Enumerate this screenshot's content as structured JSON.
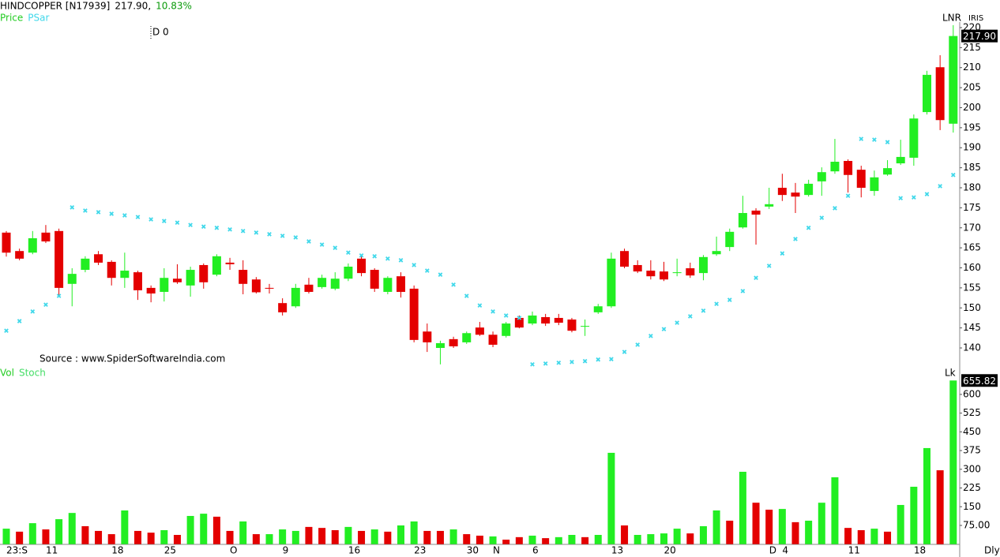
{
  "chart_data": [
    {
      "type": "candlestick",
      "title": "HINDCOPPER [N17939]",
      "header_price": "217.90,",
      "header_change": "10.83%",
      "header_change_color": "#0a9a0a",
      "annotation": "D 0",
      "source": "Source : www.SpiderSoftwareIndia.com",
      "axis_tags": [
        "LNR",
        "IRIS"
      ],
      "up_color": "#22ee22",
      "down_color": "#e40000",
      "ylim": [
        135,
        221
      ],
      "yticks": [
        140,
        145,
        150,
        155,
        160,
        165,
        170,
        175,
        180,
        185,
        190,
        195,
        200,
        205,
        210,
        215,
        220
      ],
      "last_price": {
        "value": 217.9,
        "label": "217.90"
      },
      "series": [
        {
          "name": "Price",
          "color": "#22cc22",
          "open": [
            168.8,
            164.2,
            163.8,
            168.8,
            169.2,
            156,
            159.5,
            163.4,
            161.5,
            157.5,
            158.9,
            155,
            154,
            157.3,
            155.6,
            160.7,
            158.3,
            161.3,
            159.5,
            157.1,
            155,
            151.2,
            150.4,
            155.8,
            155.2,
            154.8,
            157.3,
            162.3,
            159.5,
            154,
            157.9,
            154.8,
            144.1,
            140,
            142.2,
            141.4,
            145.1,
            143.3,
            143,
            147.5,
            146.1,
            147.7,
            147.5,
            147.1,
            145.3,
            148.9,
            150.4,
            164.2,
            160.7,
            159.3,
            159.1,
            158.7,
            159.9,
            158.7,
            163.4,
            165.2,
            170.1,
            174.3,
            175.3,
            180,
            178.8,
            178.2,
            181.6,
            184.1,
            186.7,
            184.5,
            179.2,
            183.3,
            186.1,
            187.5,
            198.9,
            210.1,
            196
          ],
          "high": [
            169.2,
            164.8,
            169.2,
            170.7,
            169.8,
            159.9,
            162.9,
            164.2,
            161.9,
            163.8,
            159.3,
            155.6,
            159.9,
            160.9,
            160.3,
            161.1,
            163.4,
            162.5,
            161.9,
            157.7,
            156,
            152.4,
            156,
            157.5,
            158.3,
            158.9,
            161.1,
            162.9,
            159.9,
            157.9,
            158.9,
            155.6,
            146.1,
            141.8,
            142.8,
            144.1,
            146.5,
            144.1,
            146.5,
            148.1,
            149.1,
            148.5,
            148.5,
            147.5,
            147.1,
            151,
            163.8,
            164.8,
            161.9,
            161.9,
            161.5,
            162.3,
            161.3,
            163.2,
            167.8,
            169.8,
            178,
            174.9,
            180,
            183.5,
            181.2,
            182,
            185.1,
            192.2,
            187.1,
            185.5,
            184.3,
            186.9,
            192,
            198.3,
            209.2,
            213.1,
            220.6
          ],
          "low": [
            162.8,
            161.9,
            163.4,
            166.2,
            153,
            150.4,
            158.9,
            160.7,
            155.6,
            155,
            152,
            151.4,
            151.6,
            156,
            152.8,
            154.8,
            157.9,
            159.5,
            153.4,
            153.6,
            153.6,
            148.1,
            150,
            153.6,
            154.8,
            154.4,
            156.7,
            157.9,
            154,
            153.4,
            152.6,
            141.4,
            139,
            135.9,
            140,
            141,
            143,
            140.2,
            142.6,
            144.9,
            145.7,
            145.5,
            145.7,
            143.9,
            143,
            148.5,
            150,
            159.9,
            158.7,
            157.1,
            156.7,
            157.9,
            157.5,
            156.9,
            163,
            164.2,
            169.8,
            165.8,
            174.7,
            176.7,
            173.7,
            177.8,
            178,
            183.5,
            178.8,
            177.6,
            178,
            183,
            185.7,
            185.5,
            198.3,
            194.4,
            193.8
          ],
          "close": [
            163.8,
            162.3,
            167.4,
            166.6,
            155,
            158.5,
            162.3,
            161.3,
            157.5,
            159.3,
            154.4,
            153.6,
            157.5,
            156.4,
            159.5,
            156.4,
            162.9,
            160.9,
            156,
            153.9,
            154.8,
            148.9,
            155,
            154,
            157.5,
            157.3,
            160.3,
            158.7,
            154.8,
            157.5,
            154,
            142,
            141.4,
            141.2,
            140.4,
            143.7,
            143.3,
            140.8,
            146.1,
            145.1,
            148.1,
            146.1,
            146.3,
            144.3,
            145.5,
            150.4,
            162.3,
            160.3,
            159.1,
            157.9,
            157.1,
            158.9,
            158.1,
            162.7,
            164.2,
            169,
            173.7,
            173.3,
            175.9,
            178.2,
            177.8,
            181,
            183.9,
            186.5,
            183.2,
            180,
            182.6,
            184.9,
            187.7,
            197.3,
            208.2,
            196.9,
            217.9
          ]
        },
        {
          "name": "PSar",
          "color": "#40d8ea",
          "values": [
            144.3,
            146.7,
            149.1,
            150.8,
            153,
            175.1,
            174.3,
            173.9,
            173.5,
            173.1,
            172.7,
            172.1,
            171.7,
            171.3,
            170.7,
            170.3,
            170,
            169.6,
            169.2,
            168.8,
            168.4,
            168,
            167.6,
            166.6,
            165.8,
            165,
            163.8,
            163.1,
            162.9,
            162.3,
            161.9,
            160.7,
            159.3,
            158.3,
            155.8,
            153,
            150.6,
            149.1,
            148.1,
            147.5,
            135.9,
            136.1,
            136.3,
            136.5,
            136.7,
            137.1,
            137.2,
            139,
            140.8,
            143,
            144.7,
            146.3,
            147.9,
            149.3,
            151,
            152,
            154.2,
            157.5,
            160.5,
            163.6,
            167.2,
            170,
            172.5,
            174.9,
            178,
            192.2,
            192,
            191.4,
            177.4,
            177.6,
            178.4,
            180.4,
            183.2
          ]
        }
      ]
    },
    {
      "type": "bar",
      "unit_label": "Lk",
      "x_label": "Dly",
      "indicator": "Stoch",
      "indicator_color": "#44dd66",
      "categories": [
        "23:S",
        null,
        null,
        "11",
        null,
        null,
        null,
        null,
        "18",
        null,
        null,
        null,
        "25",
        null,
        null,
        null,
        null,
        "O",
        null,
        null,
        null,
        "9",
        null,
        null,
        null,
        null,
        "16",
        null,
        null,
        null,
        null,
        "23",
        null,
        null,
        null,
        "30",
        null,
        "N",
        null,
        null,
        "6",
        null,
        null,
        null,
        null,
        null,
        "13",
        null,
        null,
        null,
        "20",
        null,
        null,
        null,
        null,
        null,
        null,
        null,
        "D",
        "4",
        null,
        null,
        null,
        null,
        "11",
        null,
        null,
        null,
        null,
        "18",
        null,
        null,
        null
      ],
      "ylim": [
        0,
        663
      ],
      "yticks": [
        {
          "value": 75,
          "label": "75.00"
        },
        150,
        225,
        300,
        375,
        450,
        525,
        600
      ],
      "series": [
        {
          "name": "Vol",
          "color": "#22cc22",
          "values": [
            62,
            50,
            84,
            59,
            100,
            125,
            72,
            53,
            40,
            135,
            53,
            46,
            56,
            37,
            113,
            122,
            110,
            53,
            91,
            40,
            40,
            59,
            53,
            69,
            65,
            56,
            69,
            53,
            59,
            50,
            75,
            91,
            53,
            53,
            59,
            40,
            34,
            31,
            18,
            28,
            34,
            24,
            28,
            37,
            28,
            37,
            366,
            75,
            37,
            40,
            43,
            62,
            43,
            72,
            135,
            94,
            290,
            166,
            138,
            141,
            88,
            94,
            166,
            268,
            65,
            56,
            62,
            50,
            157,
            230,
            385,
            296,
            655.82
          ],
          "colors": [
            "#22ee22",
            "#e40000",
            "#22ee22",
            "#e40000",
            "#22ee22",
            "#22ee22",
            "#e40000",
            "#e40000",
            "#e40000",
            "#22ee22",
            "#e40000",
            "#e40000",
            "#22ee22",
            "#e40000",
            "#22ee22",
            "#22ee22",
            "#e40000",
            "#e40000",
            "#22ee22",
            "#e40000",
            "#22ee22",
            "#22ee22",
            "#22ee22",
            "#e40000",
            "#e40000",
            "#e40000",
            "#22ee22",
            "#e40000",
            "#22ee22",
            "#e40000",
            "#22ee22",
            "#22ee22",
            "#e40000",
            "#e40000",
            "#22ee22",
            "#e40000",
            "#e40000",
            "#22ee22",
            "#e40000",
            "#e40000",
            "#22ee22",
            "#e40000",
            "#22ee22",
            "#22ee22",
            "#e40000",
            "#22ee22",
            "#22ee22",
            "#e40000",
            "#22ee22",
            "#22ee22",
            "#22ee22",
            "#22ee22",
            "#e40000",
            "#22ee22",
            "#22ee22",
            "#e40000",
            "#22ee22",
            "#e40000",
            "#e40000",
            "#22ee22",
            "#e40000",
            "#22ee22",
            "#22ee22",
            "#22ee22",
            "#e40000",
            "#e40000",
            "#22ee22",
            "#e40000",
            "#22ee22",
            "#22ee22",
            "#22ee22",
            "#e40000",
            "#22ee22"
          ]
        }
      ]
    }
  ]
}
